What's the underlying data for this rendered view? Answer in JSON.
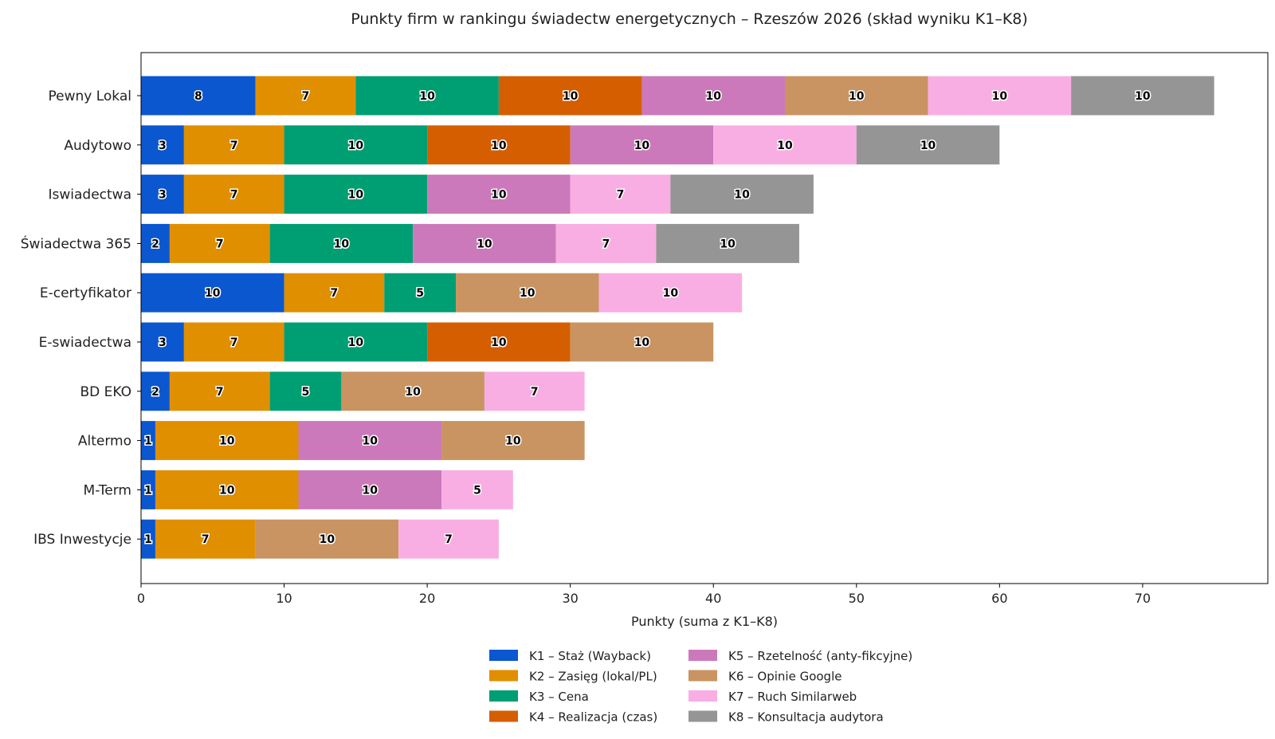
{
  "chart_data": {
    "type": "bar",
    "orientation": "horizontal",
    "stacked": true,
    "title": "Punkty firm w rankingu świadectw energetycznych – Rzeszów 2026 (skład wyniku K1–K8)",
    "xlabel": "Punkty (suma z K1–K8)",
    "ylabel": "",
    "xlim": [
      0,
      78.75
    ],
    "xticks": [
      0,
      10,
      20,
      30,
      40,
      50,
      60,
      70
    ],
    "grid": false,
    "legend_position": "bottom-center",
    "categories": [
      "Pewny Lokal",
      "Audytowo",
      "Iswiadectwa",
      "Świadectwa 365",
      "E-certyfikator",
      "E-swiadectwa",
      "BD EKO",
      "Altermo",
      "M-Term",
      "IBS Inwestycje"
    ],
    "series": [
      {
        "name": "K1 – Staż (Wayback)",
        "color": "#0b57d0",
        "values": [
          8,
          3,
          3,
          2,
          10,
          3,
          2,
          1,
          1,
          1
        ]
      },
      {
        "name": "K2 – Zasięg (lokal/PL)",
        "color": "#e08f00",
        "values": [
          7,
          7,
          7,
          7,
          7,
          7,
          7,
          10,
          10,
          7
        ]
      },
      {
        "name": "K3 – Cena",
        "color": "#009e73",
        "values": [
          10,
          10,
          10,
          10,
          5,
          10,
          5,
          0,
          0,
          0
        ]
      },
      {
        "name": "K4 – Realizacja (czas)",
        "color": "#d55e00",
        "values": [
          10,
          10,
          0,
          0,
          0,
          10,
          0,
          0,
          0,
          0
        ]
      },
      {
        "name": "K5 – Rzetelność (anty-fikcyjne)",
        "color": "#cc79bb",
        "values": [
          10,
          10,
          10,
          10,
          0,
          0,
          0,
          10,
          10,
          0
        ]
      },
      {
        "name": "K6 – Opinie Google",
        "color": "#c99462",
        "values": [
          10,
          0,
          0,
          0,
          10,
          10,
          10,
          10,
          0,
          10
        ]
      },
      {
        "name": "K7 – Ruch Similarweb",
        "color": "#f9aee3",
        "values": [
          10,
          10,
          7,
          7,
          10,
          0,
          7,
          0,
          5,
          7
        ]
      },
      {
        "name": "K8 – Konsultacja audytora",
        "color": "#959595",
        "values": [
          10,
          10,
          10,
          10,
          0,
          0,
          0,
          0,
          0,
          0
        ]
      }
    ]
  }
}
